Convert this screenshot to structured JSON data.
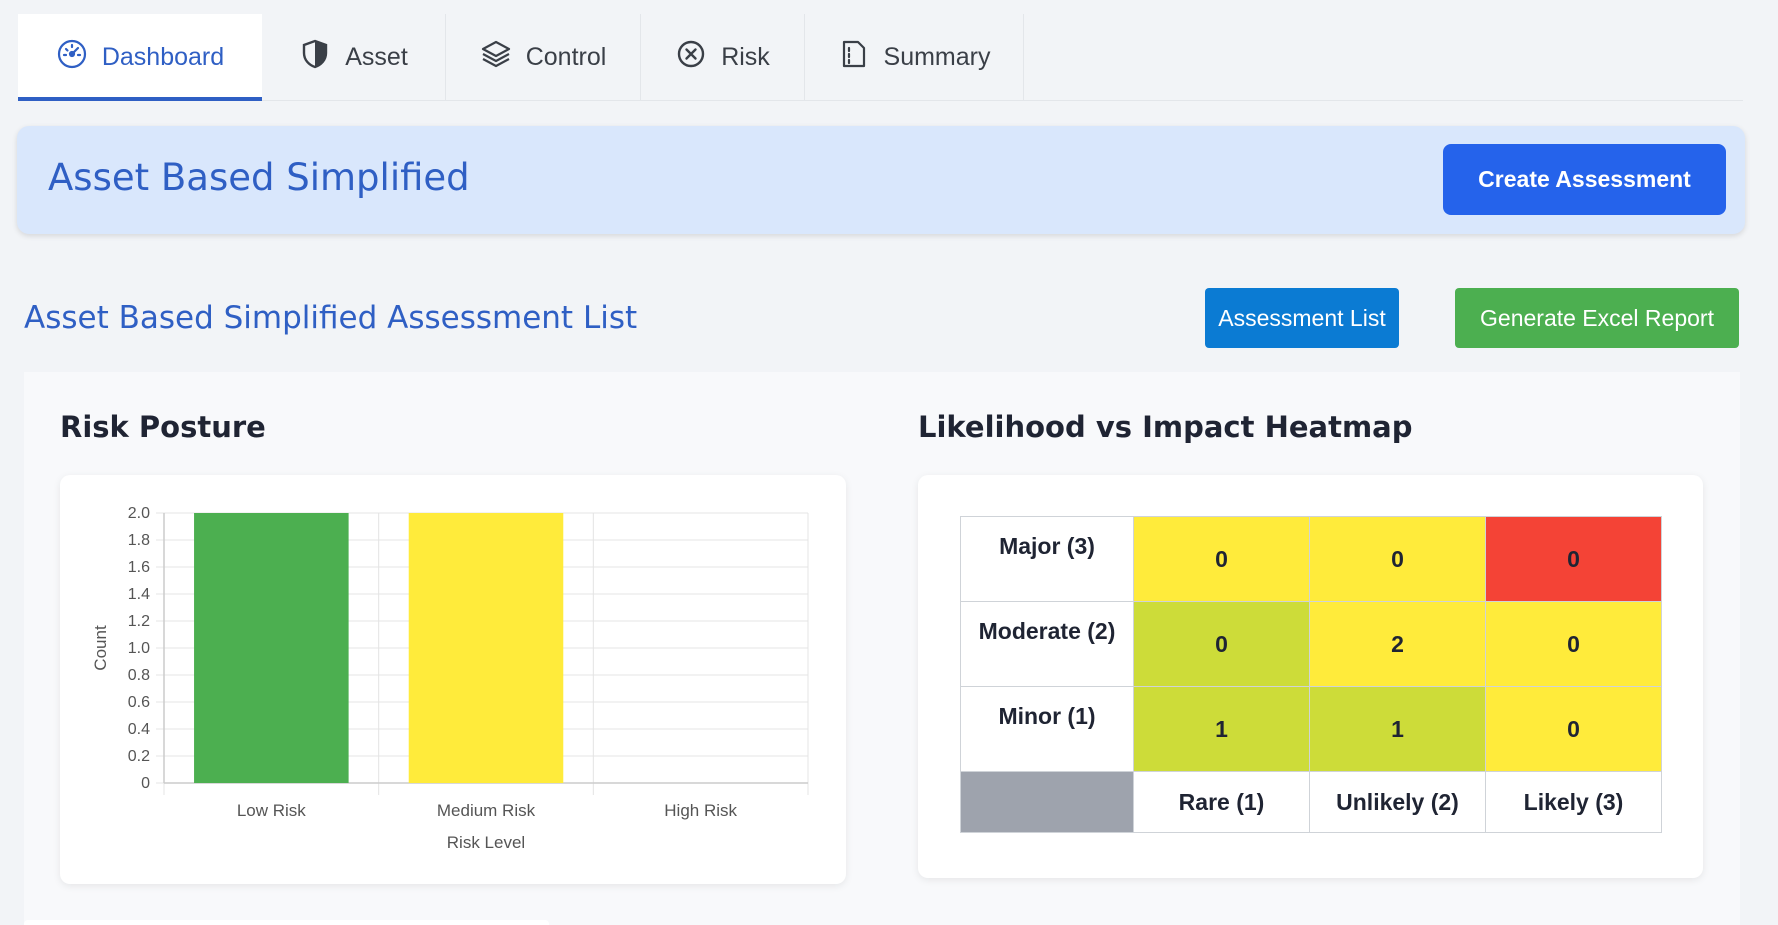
{
  "tabs": [
    {
      "label": "Dashboard",
      "icon": "dashboard-gauge-icon"
    },
    {
      "label": "Asset",
      "icon": "shield-icon"
    },
    {
      "label": "Control",
      "icon": "layers-icon"
    },
    {
      "label": "Risk",
      "icon": "x-circle-icon"
    },
    {
      "label": "Summary",
      "icon": "document-icon"
    }
  ],
  "banner": {
    "title": "Asset Based Simplified",
    "create_label": "Create Assessment"
  },
  "section": {
    "title": "Asset Based Simplified Assessment List",
    "list_label": "Assessment List",
    "excel_label": "Generate Excel Report"
  },
  "risk_posture": {
    "title": "Risk Posture"
  },
  "heatmap": {
    "title": "Likelihood vs Impact Heatmap",
    "rows": [
      {
        "label": "Major (3)",
        "values": [
          "0",
          "0",
          "0"
        ],
        "colors": [
          "#ffeb3b",
          "#ffeb3b",
          "#f44336"
        ]
      },
      {
        "label": "Moderate (2)",
        "values": [
          "0",
          "2",
          "0"
        ],
        "colors": [
          "#cddc39",
          "#ffeb3b",
          "#ffeb3b"
        ]
      },
      {
        "label": "Minor (1)",
        "values": [
          "1",
          "1",
          "0"
        ],
        "colors": [
          "#cddc39",
          "#cddc39",
          "#ffeb3b"
        ]
      }
    ],
    "columns": [
      "Rare (1)",
      "Unlikely (2)",
      "Likely (3)"
    ]
  },
  "chart_data": {
    "type": "bar",
    "categories": [
      "Low Risk",
      "Medium Risk",
      "High Risk"
    ],
    "values": [
      2,
      2,
      0
    ],
    "colors": [
      "#4caf50",
      "#ffeb3b",
      "#f44336"
    ],
    "title": "",
    "xlabel": "Risk Level",
    "ylabel": "Count",
    "ylim": [
      0,
      2
    ],
    "yticks": [
      "0",
      "0.2",
      "0.4",
      "0.6",
      "0.8",
      "1.0",
      "1.2",
      "1.4",
      "1.6",
      "1.8",
      "2.0"
    ],
    "grid": true,
    "legend": "none"
  }
}
